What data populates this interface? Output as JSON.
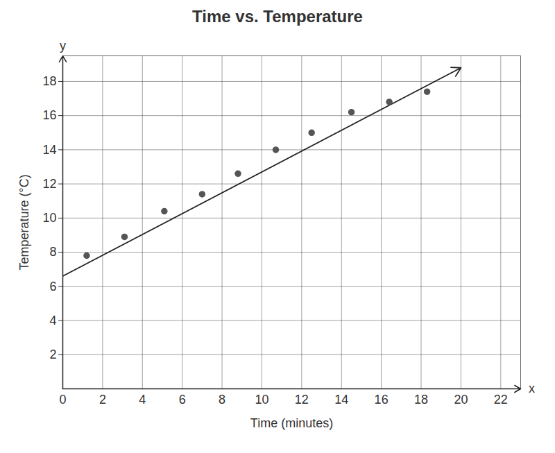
{
  "chart_data": {
    "type": "scatter",
    "title": "Time vs. Temperature",
    "x_label": "Time (minutes)",
    "y_label": "Temperature (°C)",
    "x": [
      1.2,
      3.1,
      5.1,
      7,
      8.8,
      10.7,
      12.5,
      14.5,
      16.4,
      18.3
    ],
    "values": [
      7.8,
      8.9,
      10.4,
      11.4,
      12.6,
      14,
      15,
      16.2,
      16.8,
      17.4
    ],
    "trend_line": {
      "x": [
        0,
        20
      ],
      "values": [
        6.6,
        18.8
      ]
    },
    "color": "#555555",
    "xlim": [
      0,
      23
    ],
    "xticks": [
      0,
      2,
      4,
      6,
      8,
      10,
      12,
      14,
      16,
      18,
      20,
      22
    ],
    "ylim": [
      0,
      19.5
    ],
    "yticks": [
      2,
      4,
      6,
      8,
      10,
      12,
      14,
      16,
      18
    ],
    "grid": true,
    "marker": "circle",
    "annotations": [
      "x",
      "y"
    ]
  }
}
